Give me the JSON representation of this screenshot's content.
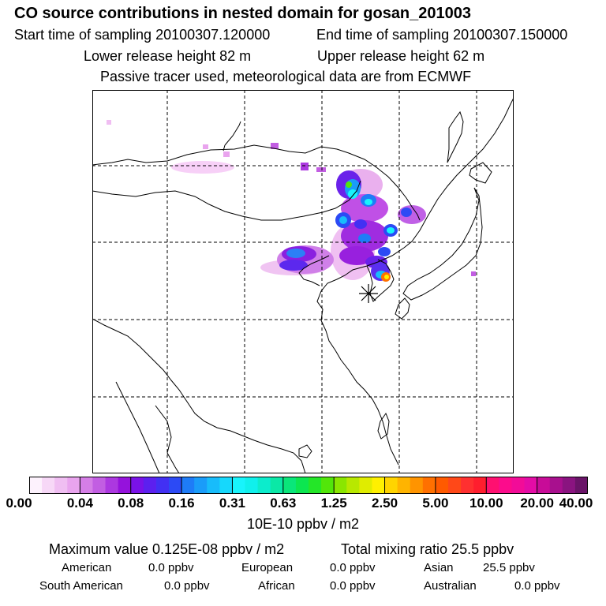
{
  "header": {
    "title": "CO  source contributions in nested domain for gosan_201003",
    "start_time": "Start time of sampling 20100307.120000",
    "end_time": "End time of sampling 20100307.150000",
    "lower_height": "Lower release height   82 m",
    "upper_height": "Upper release height   62 m",
    "tracer_note": "Passive tracer used, meteorological data are from ECMWF"
  },
  "colorbar": {
    "ticks": [
      "0.00",
      "0.04",
      "0.08",
      "0.16",
      "0.31",
      "0.63",
      "1.25",
      "2.50",
      "5.00",
      "10.00",
      "20.00",
      "40.00"
    ],
    "units": "10E-10 ppbv / m2",
    "colors": [
      "#fdf2fd",
      "#f7d8f7",
      "#f0bef2",
      "#e9a4ee",
      "#d57ee6",
      "#c25ee2",
      "#ac38e0",
      "#9512dc",
      "#7a12e8",
      "#5c20ef",
      "#4230f3",
      "#2c4af5",
      "#1e7cf7",
      "#1a9cf9",
      "#18bcfb",
      "#16d8fc",
      "#18f4fc",
      "#10f0ec",
      "#0ceccc",
      "#0ae8a6",
      "#0ae67a",
      "#0ce650",
      "#24e628",
      "#52e60a",
      "#8ae600",
      "#b8e800",
      "#e0ec00",
      "#fff000",
      "#ffd400",
      "#ffb400",
      "#ff9400",
      "#ff7000",
      "#ff5a00",
      "#ff4818",
      "#ff3030",
      "#ff1e2e",
      "#ff1070",
      "#fc0c8c",
      "#f20c98",
      "#e40ca6",
      "#c80c98",
      "#a8108e",
      "#8a1480",
      "#6a1468"
    ]
  },
  "stats": {
    "max_value": "Maximum value  0.125E-08 ppbv / m2",
    "total": "Total mixing ratio       25.5 ppbv"
  },
  "regions": [
    {
      "name": "American",
      "value": "0.0 ppbv"
    },
    {
      "name": "European",
      "value": "0.0 ppbv"
    },
    {
      "name": "Asian",
      "value": "25.5 ppbv"
    },
    {
      "name": "South American",
      "value": "0.0 ppbv"
    },
    {
      "name": "African",
      "value": "0.0 ppbv"
    },
    {
      "name": "Australian",
      "value": "0.0 ppbv"
    }
  ]
}
